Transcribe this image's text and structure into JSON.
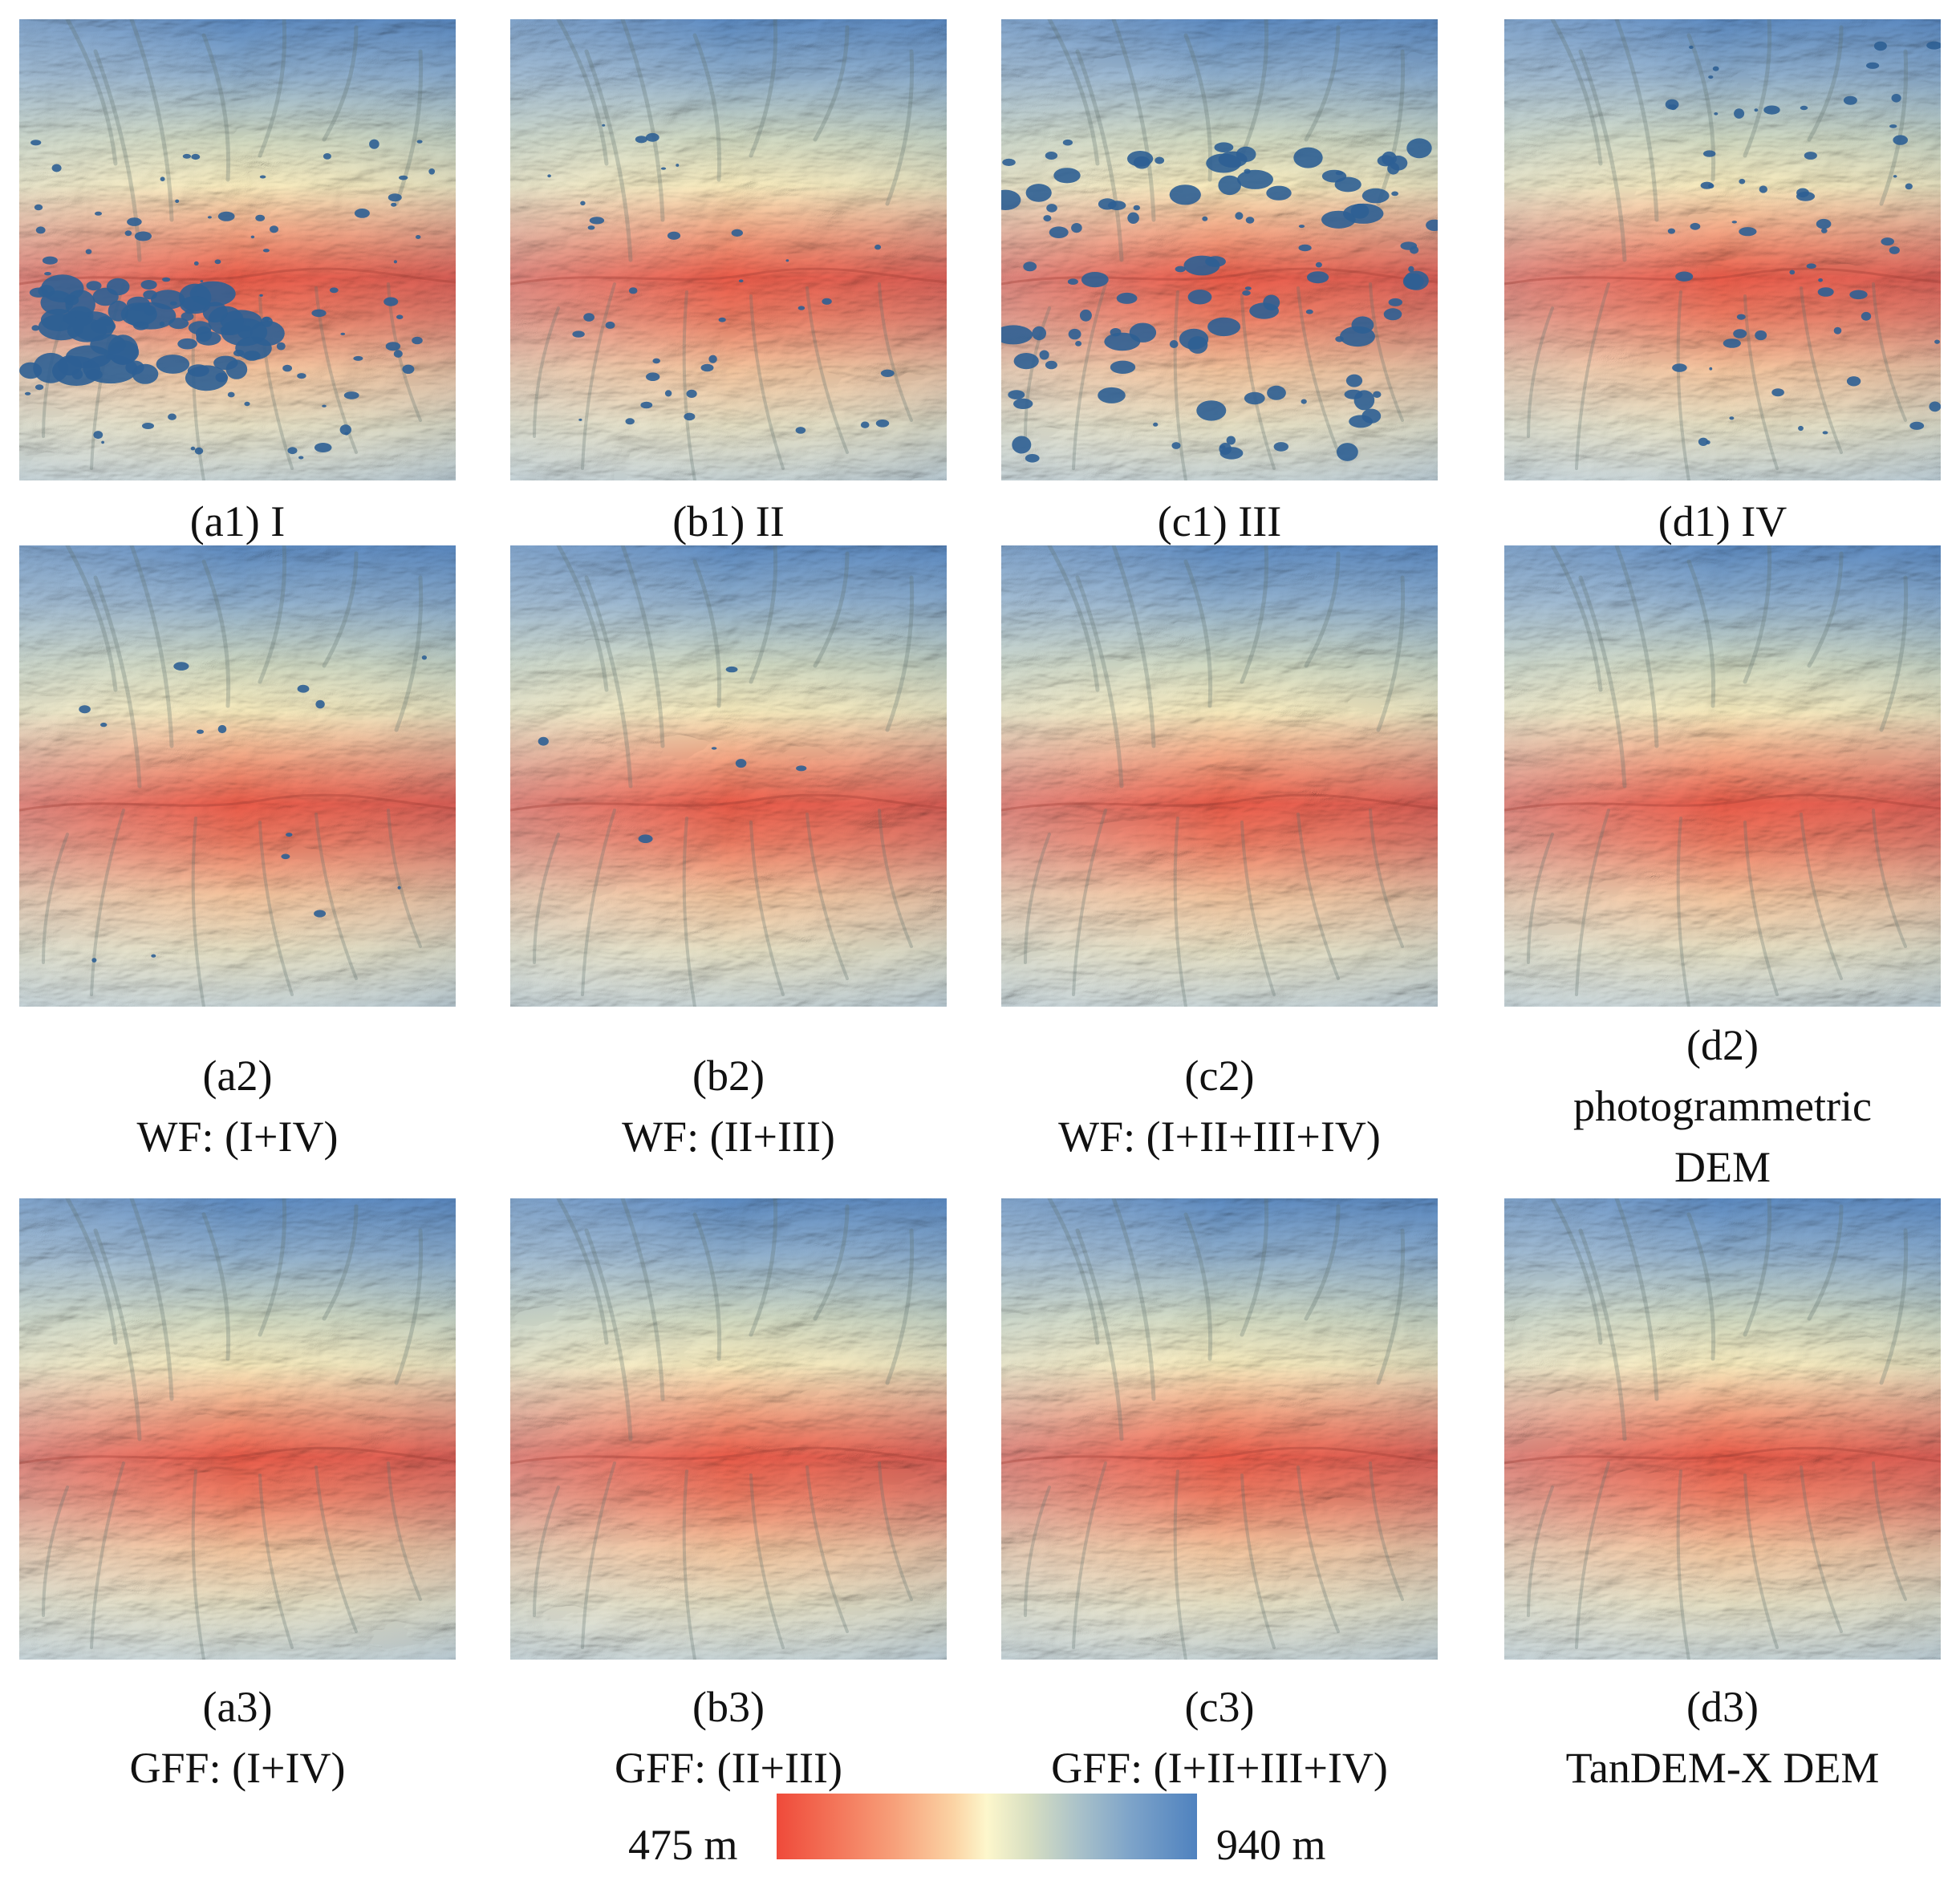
{
  "panels": [
    {
      "id": "a1",
      "label": "(a1) I",
      "lines": [
        "(a1) I"
      ],
      "voids": "heavy-west"
    },
    {
      "id": "b1",
      "label": "(b1) II",
      "lines": [
        "(b1) II"
      ],
      "voids": "sparse"
    },
    {
      "id": "c1",
      "label": "(c1) III",
      "lines": [
        "(c1) III"
      ],
      "voids": "heavy-scattered"
    },
    {
      "id": "d1",
      "label": "(d1) IV",
      "lines": [
        "(d1) IV"
      ],
      "voids": "light-east"
    },
    {
      "id": "a2",
      "label": "(a2) WF: (I+IV)",
      "lines": [
        "(a2)",
        "WF: (I+IV)"
      ],
      "voids": "few"
    },
    {
      "id": "b2",
      "label": "(b2) WF: (II+III)",
      "lines": [
        "(b2)",
        "WF: (II+III)"
      ],
      "voids": "very-few"
    },
    {
      "id": "c2",
      "label": "(c2) WF: (I+II+III+IV)",
      "lines": [
        "(c2)",
        "WF: (I+II+III+IV)"
      ],
      "voids": "none"
    },
    {
      "id": "d2",
      "label": "(d2) photogrammetric DEM",
      "lines": [
        "(d2)",
        "photogrammetric",
        "DEM"
      ],
      "voids": "none"
    },
    {
      "id": "a3",
      "label": "(a3) GFF: (I+IV)",
      "lines": [
        "(a3)",
        "GFF: (I+IV)"
      ],
      "voids": "none"
    },
    {
      "id": "b3",
      "label": "(b3) GFF: (II+III)",
      "lines": [
        "(b3)",
        "GFF: (II+III)"
      ],
      "voids": "none"
    },
    {
      "id": "c3",
      "label": "(c3) GFF: (I+II+III+IV)",
      "lines": [
        "(c3)",
        "GFF: (I+II+III+IV)"
      ],
      "voids": "none"
    },
    {
      "id": "d3",
      "label": "(d3) TanDEM-X DEM",
      "lines": [
        "(d3)",
        "TanDEM-X DEM"
      ],
      "voids": "none"
    }
  ],
  "colorbar": {
    "min_label": "475 m",
    "max_label": "940 m",
    "min_color": "#ef4a3a",
    "mid_color": "#fdf7cc",
    "max_color": "#4f82bf"
  },
  "void_color": "#2e5f93"
}
